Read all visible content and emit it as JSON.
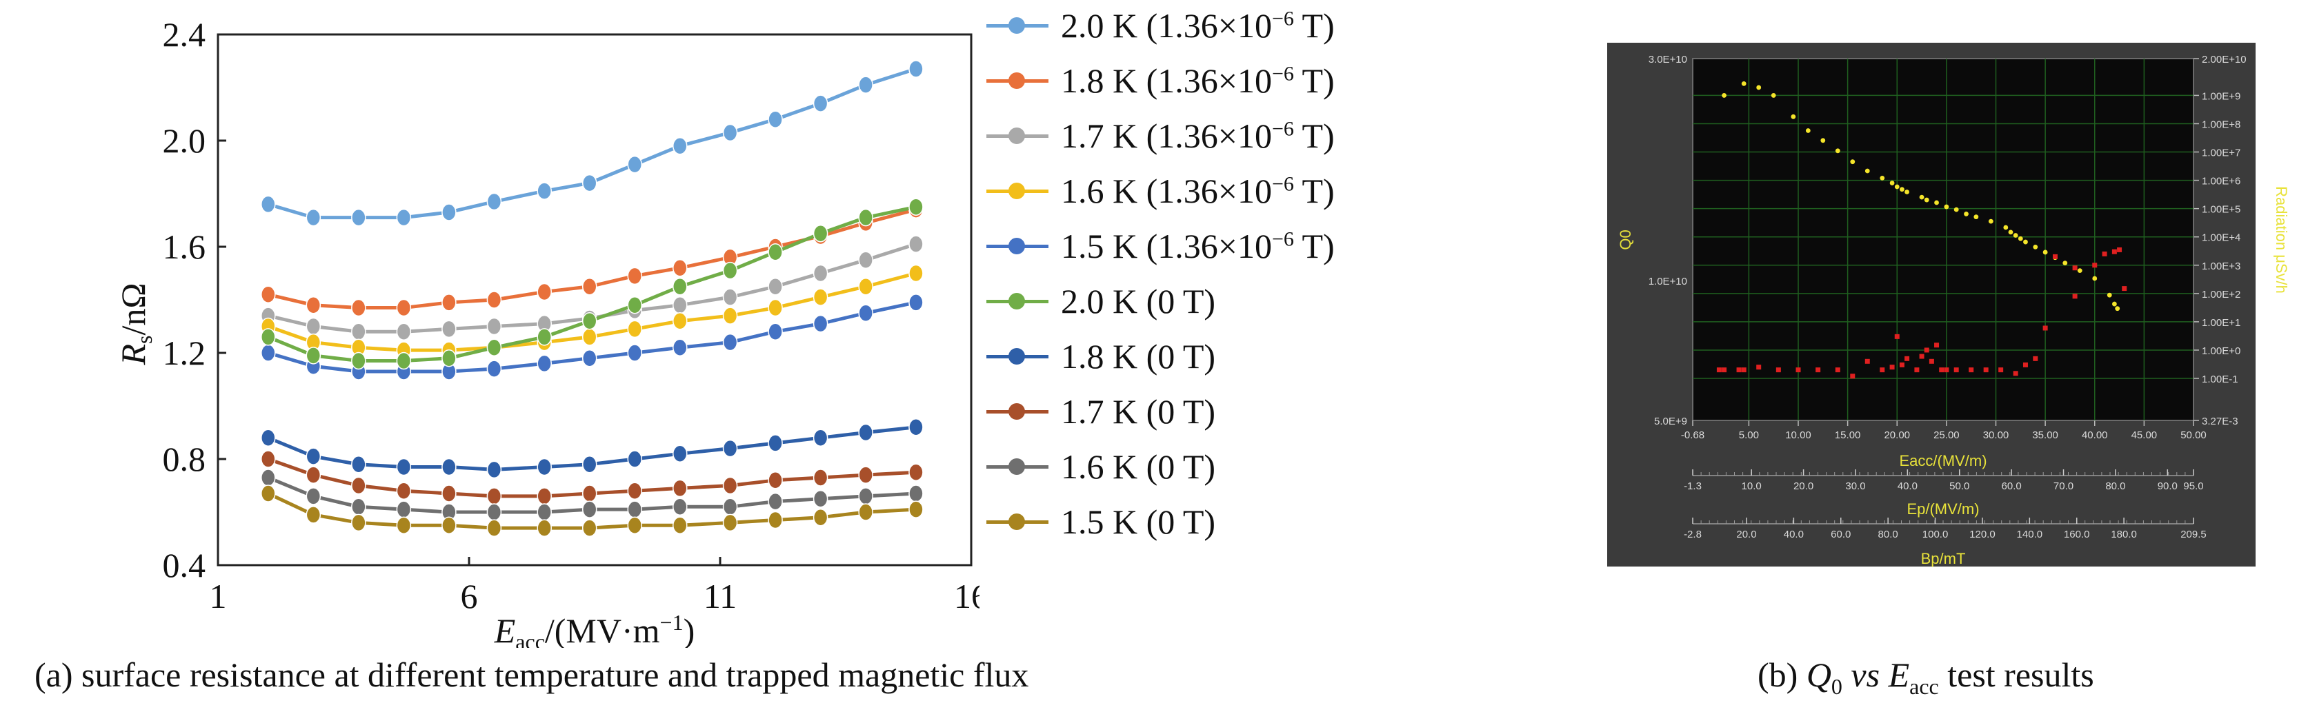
{
  "chart_data": [
    {
      "type": "line",
      "ylabel": "Rs/nΩ",
      "xlabel": "Eacc/(MV·m−1)",
      "xlim": [
        1,
        16
      ],
      "ylim": [
        0.4,
        2.4
      ],
      "xticks": [
        "1",
        "6",
        "11",
        "16"
      ],
      "yticks": [
        "0.4",
        "0.8",
        "1.2",
        "1.6",
        "2.0",
        "2.4"
      ],
      "x": [
        2.0,
        2.9,
        3.8,
        4.7,
        5.6,
        6.5,
        7.5,
        8.4,
        9.3,
        10.2,
        11.2,
        12.1,
        13.0,
        13.9,
        14.9
      ],
      "legend_position": "right",
      "series": [
        {
          "name": "2.0 K (1.36×10⁻⁶ T)",
          "color": "#6aa3d9",
          "values": [
            1.76,
            1.71,
            1.71,
            1.71,
            1.73,
            1.77,
            1.81,
            1.84,
            1.91,
            1.98,
            2.03,
            2.08,
            2.14,
            2.21,
            2.27
          ]
        },
        {
          "name": "1.8 K (1.36×10⁻⁶ T)",
          "color": "#e8703a",
          "values": [
            1.42,
            1.38,
            1.37,
            1.37,
            1.39,
            1.4,
            1.43,
            1.45,
            1.49,
            1.52,
            1.56,
            1.6,
            1.64,
            1.69,
            1.74
          ]
        },
        {
          "name": "1.7 K (1.36×10⁻⁶ T)",
          "color": "#a9a9a9",
          "values": [
            1.34,
            1.3,
            1.28,
            1.28,
            1.29,
            1.3,
            1.31,
            1.33,
            1.36,
            1.38,
            1.41,
            1.45,
            1.5,
            1.55,
            1.61
          ]
        },
        {
          "name": "1.6 K (1.36×10⁻⁶ T)",
          "color": "#f2be1a",
          "values": [
            1.3,
            1.24,
            1.22,
            1.21,
            1.21,
            1.22,
            1.24,
            1.26,
            1.29,
            1.32,
            1.34,
            1.37,
            1.41,
            1.45,
            1.5
          ]
        },
        {
          "name": "1.5 K (1.36×10⁻⁶ T)",
          "color": "#4472c4",
          "values": [
            1.2,
            1.15,
            1.13,
            1.13,
            1.13,
            1.14,
            1.16,
            1.18,
            1.2,
            1.22,
            1.24,
            1.28,
            1.31,
            1.35,
            1.39
          ]
        },
        {
          "name": "2.0 K (0 T)",
          "color": "#70ad47",
          "values": [
            1.26,
            1.19,
            1.17,
            1.17,
            1.18,
            1.22,
            1.26,
            1.32,
            1.38,
            1.45,
            1.51,
            1.58,
            1.65,
            1.71,
            1.75
          ]
        },
        {
          "name": "1.8 K (0 T)",
          "color": "#2e5fa8",
          "values": [
            0.88,
            0.81,
            0.78,
            0.77,
            0.77,
            0.76,
            0.77,
            0.78,
            0.8,
            0.82,
            0.84,
            0.86,
            0.88,
            0.9,
            0.92
          ]
        },
        {
          "name": "1.7 K (0 T)",
          "color": "#a84f2a",
          "values": [
            0.8,
            0.74,
            0.7,
            0.68,
            0.67,
            0.66,
            0.66,
            0.67,
            0.68,
            0.69,
            0.7,
            0.72,
            0.73,
            0.74,
            0.75
          ]
        },
        {
          "name": "1.6 K (0 T)",
          "color": "#6f6f6f",
          "values": [
            0.73,
            0.66,
            0.62,
            0.61,
            0.6,
            0.6,
            0.6,
            0.61,
            0.61,
            0.62,
            0.62,
            0.64,
            0.65,
            0.66,
            0.67
          ]
        },
        {
          "name": "1.5 K (0 T)",
          "color": "#a8841e",
          "values": [
            0.67,
            0.59,
            0.56,
            0.55,
            0.55,
            0.54,
            0.54,
            0.54,
            0.55,
            0.55,
            0.56,
            0.57,
            0.58,
            0.6,
            0.61
          ]
        }
      ]
    },
    {
      "type": "scatter",
      "background": "#0a0a0a",
      "frame": "#3b3b3b",
      "xlabel": "Eacc/(MV/m)",
      "ylabel_left": "Q0",
      "ylabel_right": "Radiation μSv/h",
      "secondary_axes": [
        {
          "label": "Ep/(MV/m)",
          "ticks": [
            "-1.3",
            "10.0",
            "20.0",
            "30.0",
            "40.0",
            "50.0",
            "60.0",
            "70.0",
            "80.0",
            "90.0",
            "95.0"
          ]
        },
        {
          "label": "Bp/mT",
          "ticks": [
            "-2.8",
            "20.0",
            "40.0",
            "60.0",
            "80.0",
            "100.0",
            "120.0",
            "140.0",
            "160.0",
            "180.0",
            "209.5"
          ]
        }
      ],
      "xlim": [
        -0.68,
        50.0
      ],
      "xticks": [
        "-0.68",
        "5.00",
        "10.00",
        "15.00",
        "20.00",
        "25.00",
        "30.00",
        "35.00",
        "40.00",
        "45.00",
        "50.00"
      ],
      "yticks_left": [
        "3.0E+10",
        "1.0E+10",
        "5.0E+9"
      ],
      "yticks_right": [
        "2.00E+10",
        "1.00E+9",
        "1.00E+8",
        "1.00E+7",
        "1.00E+6",
        "1.00E+5",
        "1.00E+4",
        "1.00E+3",
        "1.00E+2",
        "1.00E+1",
        "1.00E+0",
        "1.00E-1",
        "3.27E-3"
      ],
      "left_axis_scale": "log",
      "right_axis_scale": "log",
      "series": [
        {
          "name": "",
          "color": "#f5e52a",
          "axis": "left",
          "x": [
            2.5,
            4.5,
            6.0,
            7.5,
            9.5,
            11.0,
            12.5,
            14.0,
            15.5,
            17.0,
            18.5,
            19.5,
            20.0,
            20.5,
            21.0,
            22.5,
            23.0,
            24.0,
            25.0,
            26.0,
            27.0,
            28.0,
            29.5,
            31.0,
            31.5,
            32.0,
            32.5,
            33.0,
            34.0,
            35.0,
            36.0,
            37.0,
            38.5,
            40.0,
            41.5,
            42.0,
            42.3
          ],
          "y": [
            25000000000.0,
            26500000000.0,
            26000000000.0,
            25000000000.0,
            22500000000.0,
            21000000000.0,
            20000000000.0,
            19000000000.0,
            18000000000.0,
            17200000000.0,
            16600000000.0,
            16200000000.0,
            15900000000.0,
            15700000000.0,
            15500000000.0,
            15100000000.0,
            14900000000.0,
            14700000000.0,
            14400000000.0,
            14200000000.0,
            13900000000.0,
            13700000000.0,
            13400000000.0,
            13000000000.0,
            12700000000.0,
            12500000000.0,
            12300000000.0,
            12100000000.0,
            11800000000.0,
            11500000000.0,
            11200000000.0,
            10900000000.0,
            10500000000.0,
            10100000000.0,
            9300000000.0,
            8900000000.0,
            8700000000.0
          ]
        },
        {
          "name": "",
          "color": "#e02020",
          "axis": "right",
          "x": [
            2.0,
            2.5,
            4.0,
            4.5,
            6.0,
            8.0,
            10.0,
            12.0,
            14.0,
            15.5,
            17.0,
            18.5,
            19.5,
            20.0,
            20.5,
            21.0,
            22.0,
            22.5,
            23.0,
            23.5,
            24.0,
            24.5,
            25.0,
            26.0,
            27.5,
            29.0,
            30.5,
            32.0,
            33.0,
            34.0,
            35.0,
            36.0,
            38.0,
            41.0,
            42.0,
            42.5,
            43.0,
            38.0,
            40.0
          ],
          "y": [
            0.2,
            0.2,
            0.2,
            0.2,
            0.25,
            0.2,
            0.2,
            0.2,
            0.2,
            0.12,
            0.4,
            0.2,
            0.25,
            3.0,
            0.3,
            0.5,
            0.2,
            0.6,
            1.0,
            0.4,
            1.5,
            0.2,
            0.2,
            0.2,
            0.2,
            0.2,
            0.2,
            0.15,
            0.3,
            0.5,
            6.0,
            2000.0,
            80.0,
            2500.0,
            3000.0,
            3500.0,
            150.0,
            800.0,
            1000.0
          ]
        }
      ]
    }
  ],
  "captions": {
    "a": "(a) surface resistance at different temperature and trapped magnetic flux",
    "b_prefix": "(b) ",
    "b_q": "Q",
    "b_q_sub": "0",
    "b_vs": " vs ",
    "b_e": "E",
    "b_e_sub": "acc",
    "b_suffix": " test results"
  },
  "legend_parts": [
    {
      "main": "2.0 K (1.36×10",
      "exp": "−6",
      "tail": " T)"
    },
    {
      "main": "1.8 K (1.36×10",
      "exp": "−6",
      "tail": " T)"
    },
    {
      "main": "1.7 K (1.36×10",
      "exp": "−6",
      "tail": " T)"
    },
    {
      "main": "1.6 K (1.36×10",
      "exp": "−6",
      "tail": " T)"
    },
    {
      "main": "1.5 K (1.36×10",
      "exp": "−6",
      "tail": " T)"
    },
    {
      "main": "2.0 K (0 T)",
      "exp": "",
      "tail": ""
    },
    {
      "main": "1.8 K (0 T)",
      "exp": "",
      "tail": ""
    },
    {
      "main": "1.7 K (0 T)",
      "exp": "",
      "tail": ""
    },
    {
      "main": "1.6 K (0 T)",
      "exp": "",
      "tail": ""
    },
    {
      "main": "1.5 K (0 T)",
      "exp": "",
      "tail": ""
    }
  ],
  "axis_label_parts": {
    "ylabel_main": "R",
    "ylabel_sub": "s",
    "ylabel_tail": "/nΩ",
    "xlabel_main": "E",
    "xlabel_sub": "acc",
    "xlabel_mid": "/(MV·m",
    "xlabel_sup": "−1",
    "xlabel_tail": ")"
  }
}
